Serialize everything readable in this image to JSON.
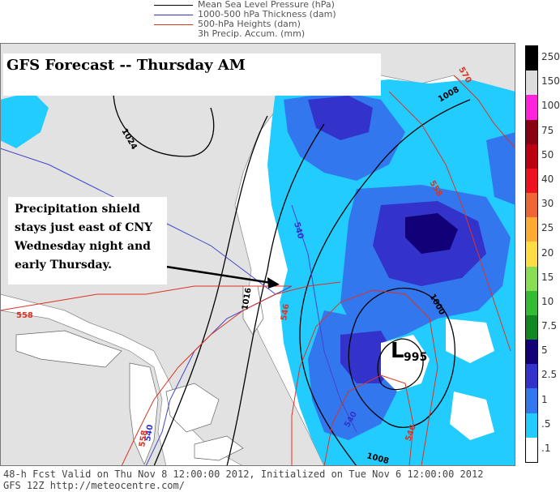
{
  "legend": [
    {
      "label": "Mean Sea Level Pressure (hPa)",
      "color": "#000000"
    },
    {
      "label": "1000-500 hPa Thickness (dam)",
      "color": "#3333cc"
    },
    {
      "label": "500-hPa Heights (dam)",
      "color": "#dd3322"
    },
    {
      "label": "3h Precip. Accum. (mm)",
      "color": "#ffffff"
    }
  ],
  "title": "GFS Forecast -- Thursday AM",
  "annotation": "Precipitation shield stays just east of CNY Wednesday night and early Thursday.",
  "low_center": {
    "symbol": "L",
    "value": "995"
  },
  "contour_labels": {
    "p1024": "1024",
    "p1016": "1016",
    "p1008a": "1008",
    "p1008b": "1008",
    "p1000": "1000",
    "t540a": "540",
    "t540b": "540",
    "t540c": "540",
    "h546a": "546",
    "h546b": "546",
    "h558a": "558",
    "h558b": "558",
    "h570": "570",
    "h558c": "558"
  },
  "colorbar": {
    "labels": [
      "250",
      "150",
      "100",
      "75",
      "50",
      "40",
      "30",
      "25",
      "20",
      "15",
      "10",
      "7.5",
      "5",
      "2.5",
      "1",
      ".5",
      ".1"
    ],
    "colors": [
      "#000000",
      "#dddddd",
      "#ff22dd",
      "#880011",
      "#bb0011",
      "#ee1122",
      "#ee6633",
      "#ffaa33",
      "#ffdd44",
      "#88dd55",
      "#33bb33",
      "#118822",
      "#110077",
      "#3333cc",
      "#3377ee",
      "#22ccff",
      "#ffffff"
    ]
  },
  "footer": {
    "line1": "48-h Fcst Valid on Thu Nov  8 12:00:00 2012, Initialized on Tue Nov  6 12:00:00 2012",
    "line2": "GFS 12Z http://meteocentre.com/"
  }
}
